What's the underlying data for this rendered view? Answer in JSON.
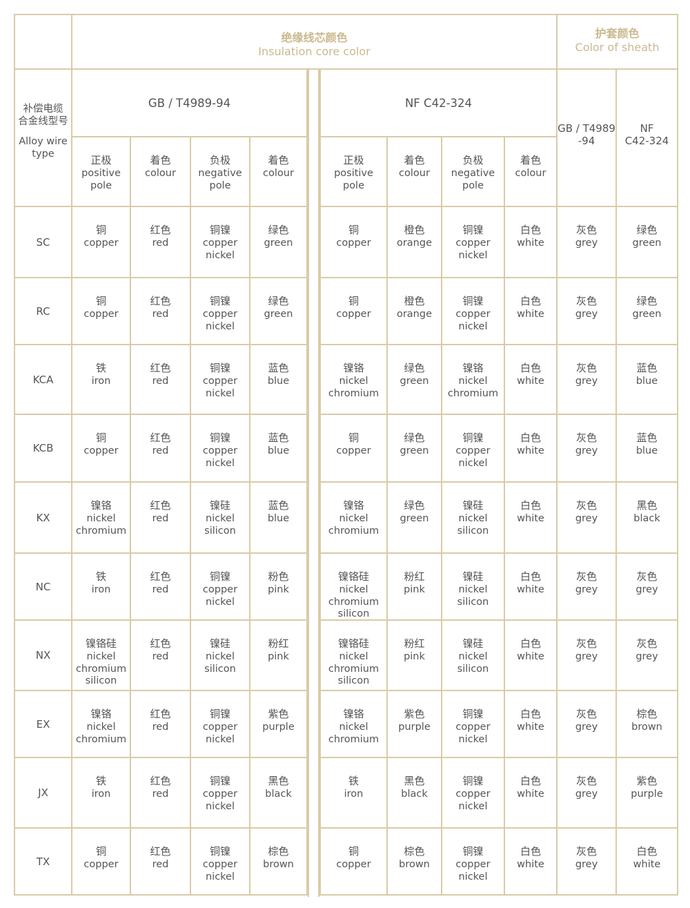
{
  "header": {
    "insulation": {
      "zh": "绝缘线芯颜色",
      "en": "Insulation core color"
    },
    "sheath": {
      "zh": "护套颜色",
      "en": "Color of sheath"
    },
    "type": {
      "zh": "补偿电缆\n合金线型号",
      "en": "Alloy wire\ntype"
    },
    "gb_standard": "GB / T4989-94",
    "nf_standard": "NF C42-324",
    "sheath_gb": "GB / T4989\n-94",
    "sheath_nf": "NF\nC42-324",
    "subcols": [
      {
        "zh": "正极",
        "en": "positive\npole"
      },
      {
        "zh": "着色",
        "en": "colour"
      },
      {
        "zh": "负极",
        "en": "negative\npole"
      },
      {
        "zh": "着色",
        "en": "colour"
      }
    ]
  },
  "accent_color": "#cbb98f",
  "border_color": "#d8cba8",
  "rows": [
    {
      "type": "SC",
      "gb": [
        [
          "铜",
          "copper"
        ],
        [
          "红色",
          "red"
        ],
        [
          "铜镍",
          "copper\nnickel"
        ],
        [
          "绿色",
          "green"
        ]
      ],
      "nf": [
        [
          "铜",
          "copper"
        ],
        [
          "橙色",
          "orange"
        ],
        [
          "铜镍",
          "copper\nnickel"
        ],
        [
          "白色",
          "white"
        ]
      ],
      "sheath": [
        [
          "灰色",
          "grey"
        ],
        [
          "绿色",
          "green"
        ]
      ]
    },
    {
      "type": "RC",
      "gb": [
        [
          "铜",
          "copper"
        ],
        [
          "红色",
          "red"
        ],
        [
          "铜镍",
          "copper\nnickel"
        ],
        [
          "绿色",
          "green"
        ]
      ],
      "nf": [
        [
          "铜",
          "copper"
        ],
        [
          "橙色",
          "orange"
        ],
        [
          "铜镍",
          "copper\nnickel"
        ],
        [
          "白色",
          "white"
        ]
      ],
      "sheath": [
        [
          "灰色",
          "grey"
        ],
        [
          "绿色",
          "green"
        ]
      ]
    },
    {
      "type": "KCA",
      "gb": [
        [
          "铁",
          "iron"
        ],
        [
          "红色",
          "red"
        ],
        [
          "铜镍",
          "copper\nnickel"
        ],
        [
          "蓝色",
          "blue"
        ]
      ],
      "nf": [
        [
          "镍铬",
          "nickel\nchromium"
        ],
        [
          "绿色",
          "green"
        ],
        [
          "镍铬",
          "nickel\nchromium"
        ],
        [
          "白色",
          "white"
        ]
      ],
      "sheath": [
        [
          "灰色",
          "grey"
        ],
        [
          "蓝色",
          "blue"
        ]
      ]
    },
    {
      "type": "KCB",
      "gb": [
        [
          "铜",
          "copper"
        ],
        [
          "红色",
          "red"
        ],
        [
          "铜镍",
          "copper\nnickel"
        ],
        [
          "蓝色",
          "blue"
        ]
      ],
      "nf": [
        [
          "铜",
          "copper"
        ],
        [
          "绿色",
          "green"
        ],
        [
          "铜镍",
          "copper\nnickel"
        ],
        [
          "白色",
          "white"
        ]
      ],
      "sheath": [
        [
          "灰色",
          "grey"
        ],
        [
          "蓝色",
          "blue"
        ]
      ]
    },
    {
      "type": "KX",
      "gb": [
        [
          "镍铬",
          "nickel\nchromium"
        ],
        [
          "红色",
          "red"
        ],
        [
          "镍硅",
          "nickel\nsilicon"
        ],
        [
          "蓝色",
          "blue"
        ]
      ],
      "nf": [
        [
          "镍铬",
          "nickel\nchromium"
        ],
        [
          "绿色",
          "green"
        ],
        [
          "镍硅",
          "nickel\nsilicon"
        ],
        [
          "白色",
          "white"
        ]
      ],
      "sheath": [
        [
          "灰色",
          "grey"
        ],
        [
          "黑色",
          "black"
        ]
      ]
    },
    {
      "type": "NC",
      "gb": [
        [
          "铁",
          "iron"
        ],
        [
          "红色",
          "red"
        ],
        [
          "铜镍",
          "copper\nnickel"
        ],
        [
          "粉色",
          "pink"
        ]
      ],
      "nf": [
        [
          "镍铬硅",
          "nickel\nchromium\nsilicon"
        ],
        [
          "粉红",
          "pink"
        ],
        [
          "镍硅",
          "nickel\nsilicon"
        ],
        [
          "白色",
          "white"
        ]
      ],
      "sheath": [
        [
          "灰色",
          "grey"
        ],
        [
          "灰色",
          "grey"
        ]
      ]
    },
    {
      "type": "NX",
      "gb": [
        [
          "镍铬硅",
          "nickel\nchromium\nsilicon"
        ],
        [
          "红色",
          "red"
        ],
        [
          "镍硅",
          "nickel\nsilicon"
        ],
        [
          "粉红",
          "pink"
        ]
      ],
      "nf": [
        [
          "镍铬硅",
          "nickel\nchromium\nsilicon"
        ],
        [
          "粉红",
          "pink"
        ],
        [
          "镍硅",
          "nickel\nsilicon"
        ],
        [
          "白色",
          "white"
        ]
      ],
      "sheath": [
        [
          "灰色",
          "grey"
        ],
        [
          "灰色",
          "grey"
        ]
      ]
    },
    {
      "type": "EX",
      "gb": [
        [
          "镍铬",
          "nickel\nchromium"
        ],
        [
          "红色",
          "red"
        ],
        [
          "铜镍",
          "copper\nnickel"
        ],
        [
          "紫色",
          "purple"
        ]
      ],
      "nf": [
        [
          "镍铬",
          "nickel\nchromium"
        ],
        [
          "紫色",
          "purple"
        ],
        [
          "铜镍",
          "copper\nnickel"
        ],
        [
          "白色",
          "white"
        ]
      ],
      "sheath": [
        [
          "灰色",
          "grey"
        ],
        [
          "棕色",
          "brown"
        ]
      ]
    },
    {
      "type": "JX",
      "gb": [
        [
          "铁",
          "iron"
        ],
        [
          "红色",
          "red"
        ],
        [
          "铜镍",
          "copper\nnickel"
        ],
        [
          "黑色",
          "black"
        ]
      ],
      "nf": [
        [
          "铁",
          "iron"
        ],
        [
          "黑色",
          "black"
        ],
        [
          "铜镍",
          "copper\nnickel"
        ],
        [
          "白色",
          "white"
        ]
      ],
      "sheath": [
        [
          "灰色",
          "grey"
        ],
        [
          "紫色",
          "purple"
        ]
      ]
    },
    {
      "type": "TX",
      "gb": [
        [
          "铜",
          "copper"
        ],
        [
          "红色",
          "red"
        ],
        [
          "铜镍",
          "copper\nnickel"
        ],
        [
          "棕色",
          "brown"
        ]
      ],
      "nf": [
        [
          "铜",
          "copper"
        ],
        [
          "棕色",
          "brown"
        ],
        [
          "铜镍",
          "copper\nnickel"
        ],
        [
          "白色",
          "white"
        ]
      ],
      "sheath": [
        [
          "灰色",
          "grey"
        ],
        [
          "白色",
          "white"
        ]
      ]
    }
  ]
}
